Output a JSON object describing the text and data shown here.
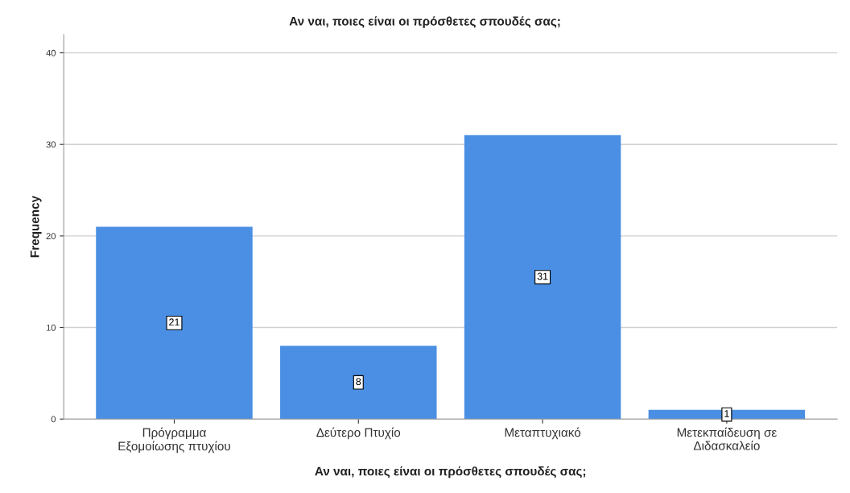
{
  "chart_data": {
    "type": "bar",
    "title": "Αν ναι, ποιες είναι οι πρόσθετες σπουδές σας;",
    "xlabel": "Αν ναι, ποιες είναι οι πρόσθετες σπουδές σας;",
    "ylabel": "Frequency",
    "categories": [
      "Πρόγραμμα\nΕξομοίωσης πτυχίου",
      "Δεύτερο Πτυχίο",
      "Μεταπτυχιακό",
      "Μετεκπαίδευση σε\nΔιδασκαλείο"
    ],
    "values": [
      21,
      8,
      31,
      1
    ],
    "color": "#4a8fe3",
    "ylim": [
      0,
      42
    ],
    "yticks": [
      0,
      10,
      20,
      30,
      40
    ],
    "grid": "y",
    "data_labels": true
  }
}
